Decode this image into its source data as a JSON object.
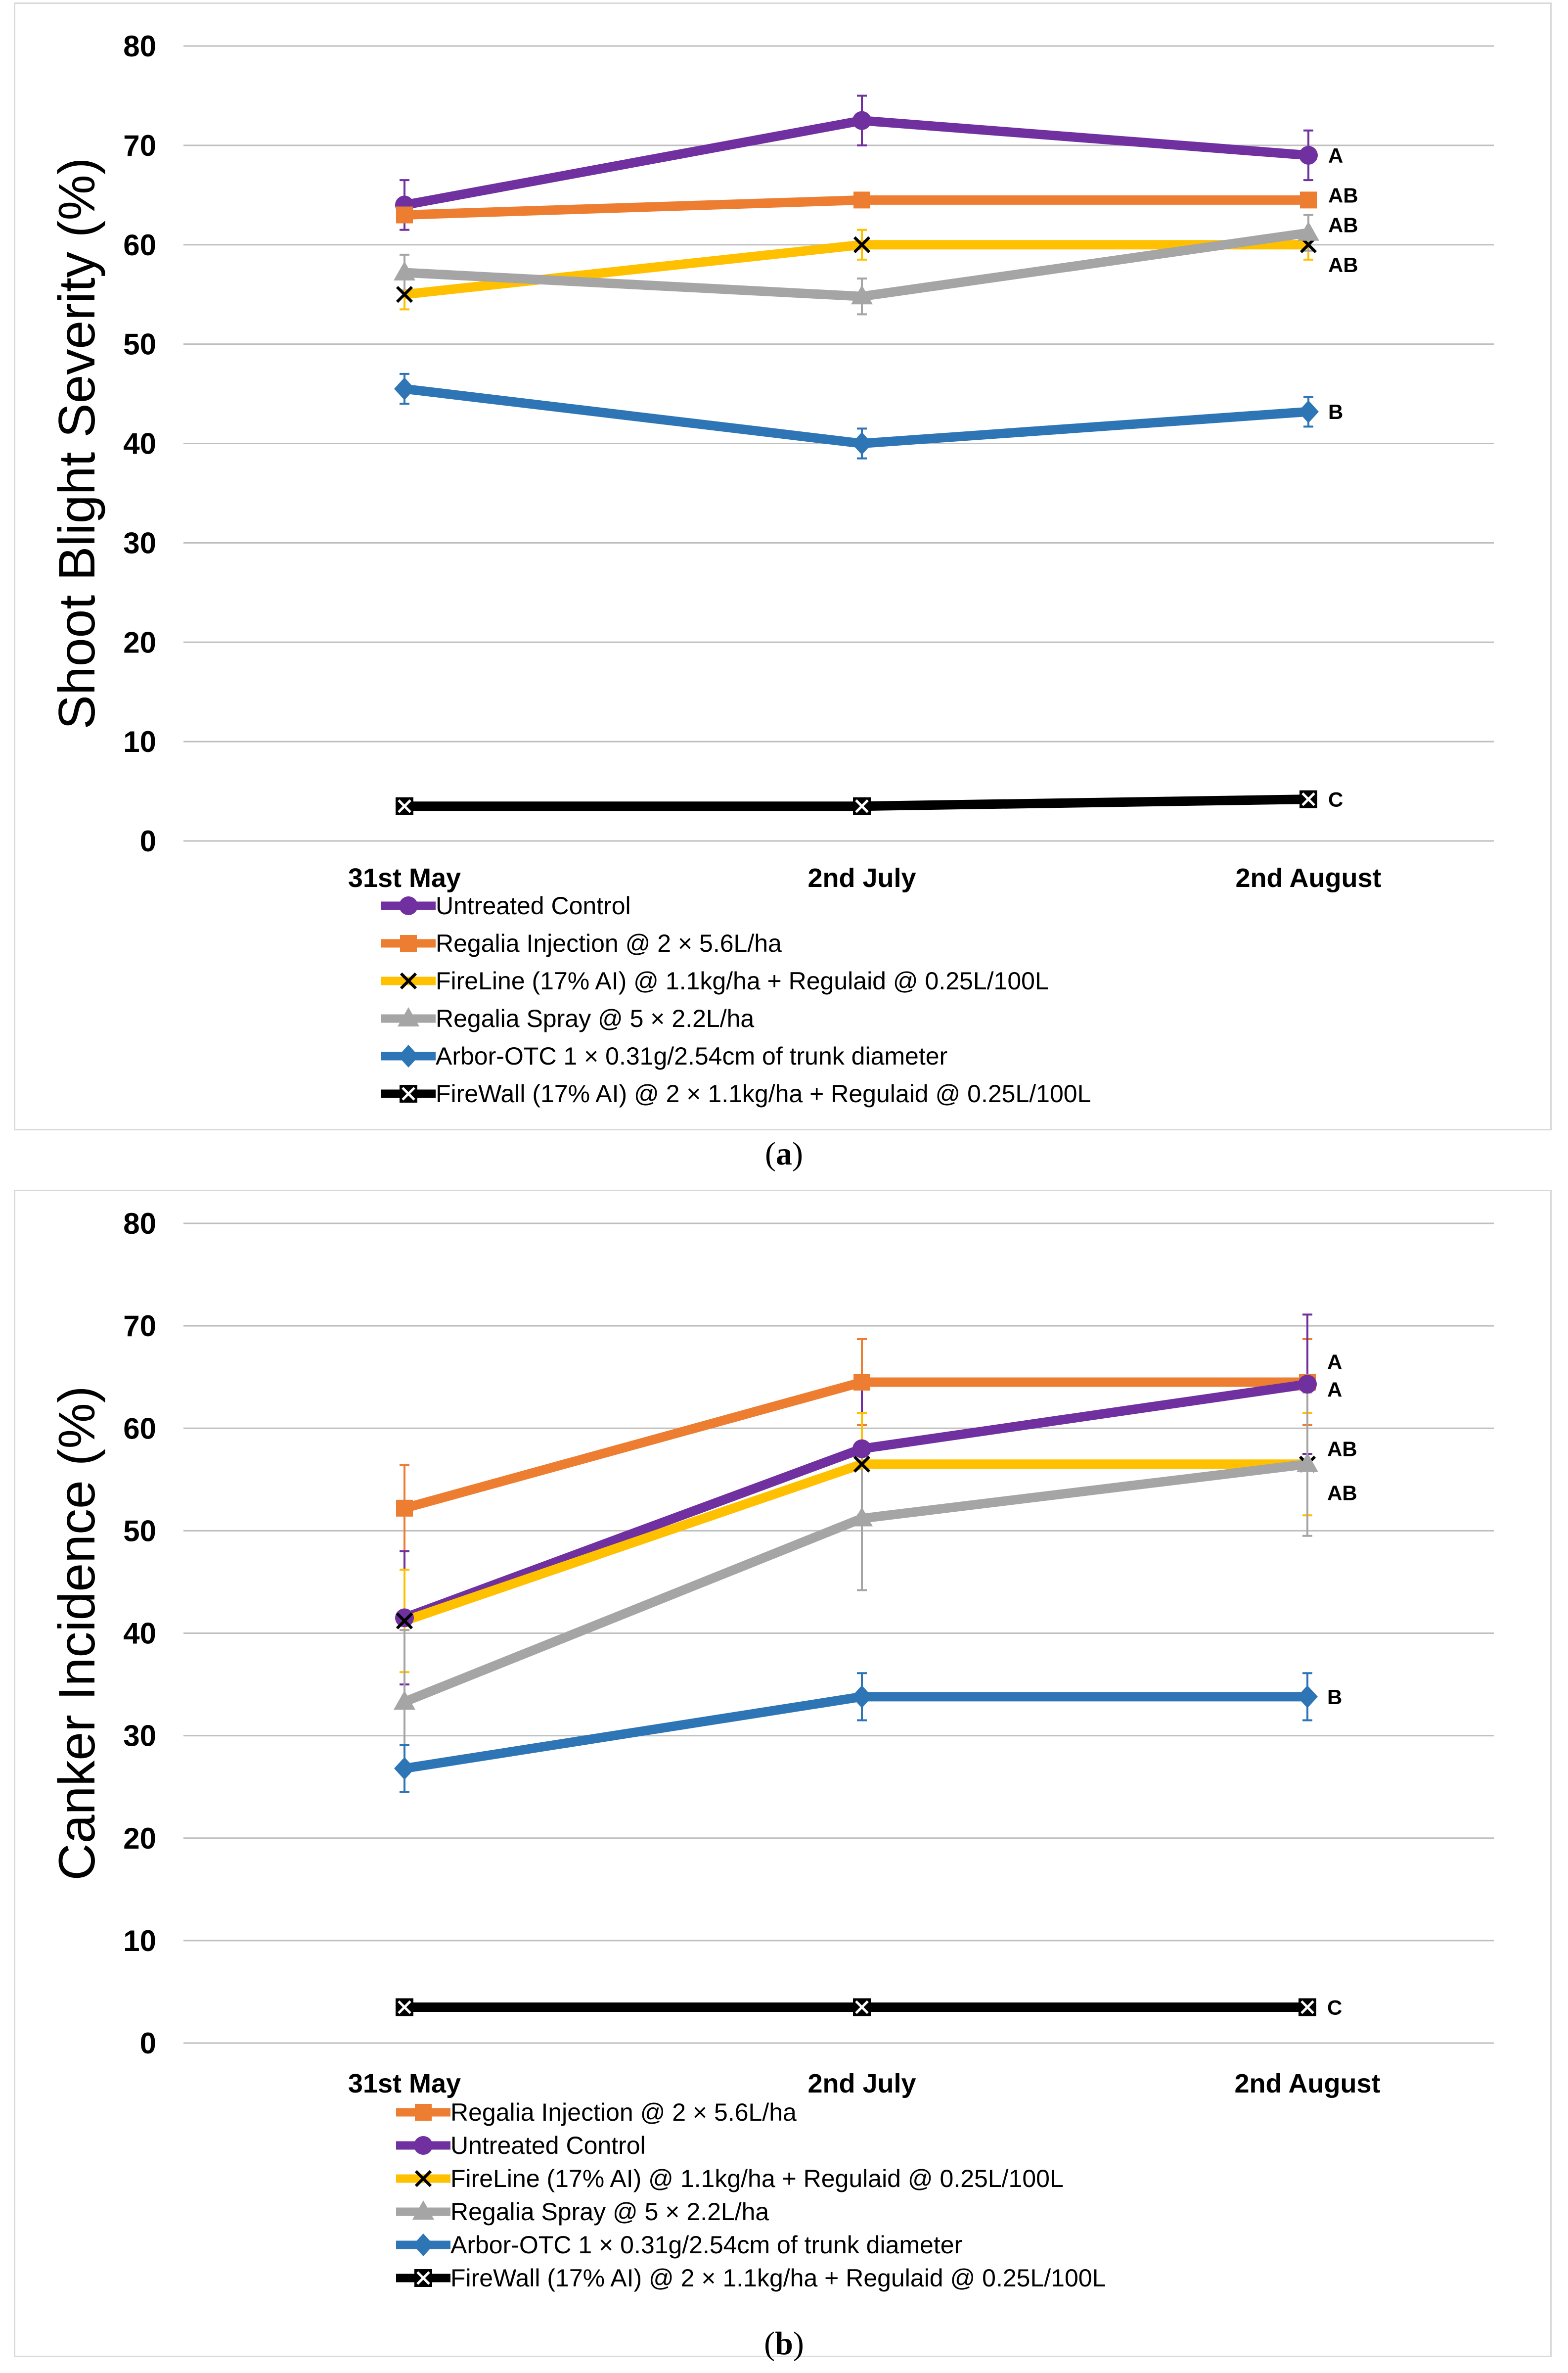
{
  "chart_data": [
    {
      "type": "line",
      "panel_caption_letter": "a",
      "ylabel": "Shoot Blight Severity (%)",
      "xlabel": "",
      "ylim": [
        0,
        80
      ],
      "yticks": [
        0,
        10,
        20,
        30,
        40,
        50,
        60,
        70,
        80
      ],
      "ytick_labels": [
        "0",
        "10",
        "20",
        "30",
        "40",
        "50",
        "60",
        "70",
        "80"
      ],
      "grid": true,
      "categories": [
        "31st May",
        "2nd July",
        "2nd August"
      ],
      "series": [
        {
          "name": "Untreated Control",
          "color": "#7030A0",
          "marker": "circle",
          "values": [
            64,
            72.5,
            69
          ],
          "errors": [
            2.5,
            2.5,
            2.5
          ]
        },
        {
          "name": "Regalia Injection @ 2 × 5.6L/ha",
          "color": "#ED7D31",
          "marker": "square",
          "values": [
            63,
            64.5,
            64.5
          ],
          "errors": [
            0.5,
            0.5,
            0.5
          ]
        },
        {
          "name": "FireLine (17% AI) @ 1.1kg/ha + Regulaid @ 0.25L/100L",
          "color": "#FFC000",
          "marker": "x",
          "values": [
            55,
            60,
            60
          ],
          "errors": [
            1.5,
            1.5,
            1.5
          ]
        },
        {
          "name": "Regalia Spray @ 5 × 2.2L/ha",
          "color": "#A5A5A5",
          "marker": "triangle",
          "values": [
            57.2,
            54.8,
            61.2
          ],
          "errors": [
            1.8,
            1.8,
            1.8
          ]
        },
        {
          "name": "Arbor-OTC 1 × 0.31g/2.54cm of trunk diameter",
          "color": "#2E75B6",
          "marker": "diamond",
          "values": [
            45.5,
            40,
            43.2
          ],
          "errors": [
            1.5,
            1.5,
            1.5
          ]
        },
        {
          "name": "FireWall (17% AI) @ 2 × 1.1kg/ha + Regulaid @ 0.25L/100L",
          "color": "#000000",
          "marker": "boxx",
          "values": [
            3.5,
            3.5,
            4.2
          ],
          "errors": [
            0,
            0,
            0
          ]
        }
      ],
      "group_labels": [
        {
          "text": "A",
          "value": 69
        },
        {
          "text": "AB",
          "value": 65
        },
        {
          "text": "AB",
          "value": 62
        },
        {
          "text": "AB",
          "value": 58
        },
        {
          "text": "B",
          "value": 43.2
        },
        {
          "text": "C",
          "value": 4.2
        }
      ],
      "legend": "bottom"
    },
    {
      "type": "line",
      "panel_caption_letter": "b",
      "ylabel": "Canker Incidence (%)",
      "xlabel": "",
      "ylim": [
        0,
        80
      ],
      "yticks": [
        0,
        10,
        20,
        30,
        40,
        50,
        60,
        70,
        80
      ],
      "ytick_labels": [
        "0",
        "10",
        "20",
        "30",
        "40",
        "50",
        "60",
        "70",
        "80"
      ],
      "grid": true,
      "categories": [
        "31st May",
        "2nd July",
        "2nd August"
      ],
      "series": [
        {
          "name": "Regalia Injection @ 2 × 5.6L/ha",
          "color": "#ED7D31",
          "marker": "square",
          "values": [
            52.2,
            64.5,
            64.5
          ],
          "errors": [
            4.2,
            4.2,
            4.2
          ]
        },
        {
          "name": "Untreated Control",
          "color": "#7030A0",
          "marker": "circle",
          "values": [
            41.5,
            58,
            64.3
          ],
          "errors": [
            6.5,
            6.5,
            6.8
          ]
        },
        {
          "name": "FireLine (17% AI) @ 1.1kg/ha + Regulaid @ 0.25L/100L",
          "color": "#FFC000",
          "marker": "x",
          "values": [
            41.2,
            56.5,
            56.5
          ],
          "errors": [
            5,
            5,
            5
          ]
        },
        {
          "name": "Regalia Spray @ 5 × 2.2L/ha",
          "color": "#A5A5A5",
          "marker": "triangle",
          "values": [
            33.3,
            51.2,
            56.5
          ],
          "errors": [
            7,
            7,
            7
          ]
        },
        {
          "name": "Arbor-OTC 1 × 0.31g/2.54cm of trunk diameter",
          "color": "#2E75B6",
          "marker": "diamond",
          "values": [
            26.8,
            33.8,
            33.8
          ],
          "errors": [
            2.3,
            2.3,
            2.3
          ]
        },
        {
          "name": "FireWall (17% AI) @ 2 × 1.1kg/ha + Regulaid @ 0.25L/100L",
          "color": "#000000",
          "marker": "boxx",
          "values": [
            3.5,
            3.5,
            3.5
          ],
          "errors": [
            0,
            0,
            0
          ]
        }
      ],
      "group_labels": [
        {
          "text": "A",
          "value": 66.5
        },
        {
          "text": "A",
          "value": 63.8
        },
        {
          "text": "AB",
          "value": 58
        },
        {
          "text": "AB",
          "value": 53.7
        },
        {
          "text": "B",
          "value": 33.8
        },
        {
          "text": "C",
          "value": 3.5
        }
      ],
      "legend": "bottom"
    }
  ]
}
